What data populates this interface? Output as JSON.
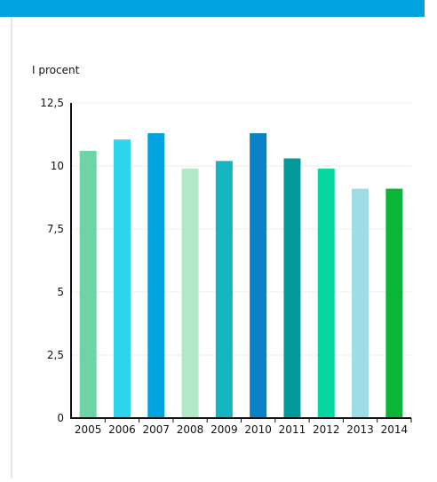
{
  "colors": {
    "top_bar": "#00a3de",
    "axis": "#111111",
    "grid": "#ececec"
  },
  "chart_data": {
    "type": "bar",
    "ylabel": "I procent",
    "ylim": [
      0,
      12.5
    ],
    "yticks": [
      "0",
      "2,5",
      "5",
      "7,5",
      "10",
      "12,5"
    ],
    "ytick_values": [
      0,
      2.5,
      5,
      7.5,
      10,
      12.5
    ],
    "grid": true,
    "categories": [
      "2005",
      "2006",
      "2007",
      "2008",
      "2009",
      "2010",
      "2011",
      "2012",
      "2013",
      "2014"
    ],
    "values": [
      10.6,
      11.05,
      11.3,
      9.9,
      10.2,
      11.3,
      10.3,
      9.9,
      9.1,
      9.1
    ],
    "bar_colors": [
      "#6dd5a5",
      "#2ed3ee",
      "#00a3de",
      "#b0e8c8",
      "#15b5c0",
      "#0a82c8",
      "#039a9c",
      "#06d6a0",
      "#9edde6",
      "#0ab53a"
    ]
  }
}
